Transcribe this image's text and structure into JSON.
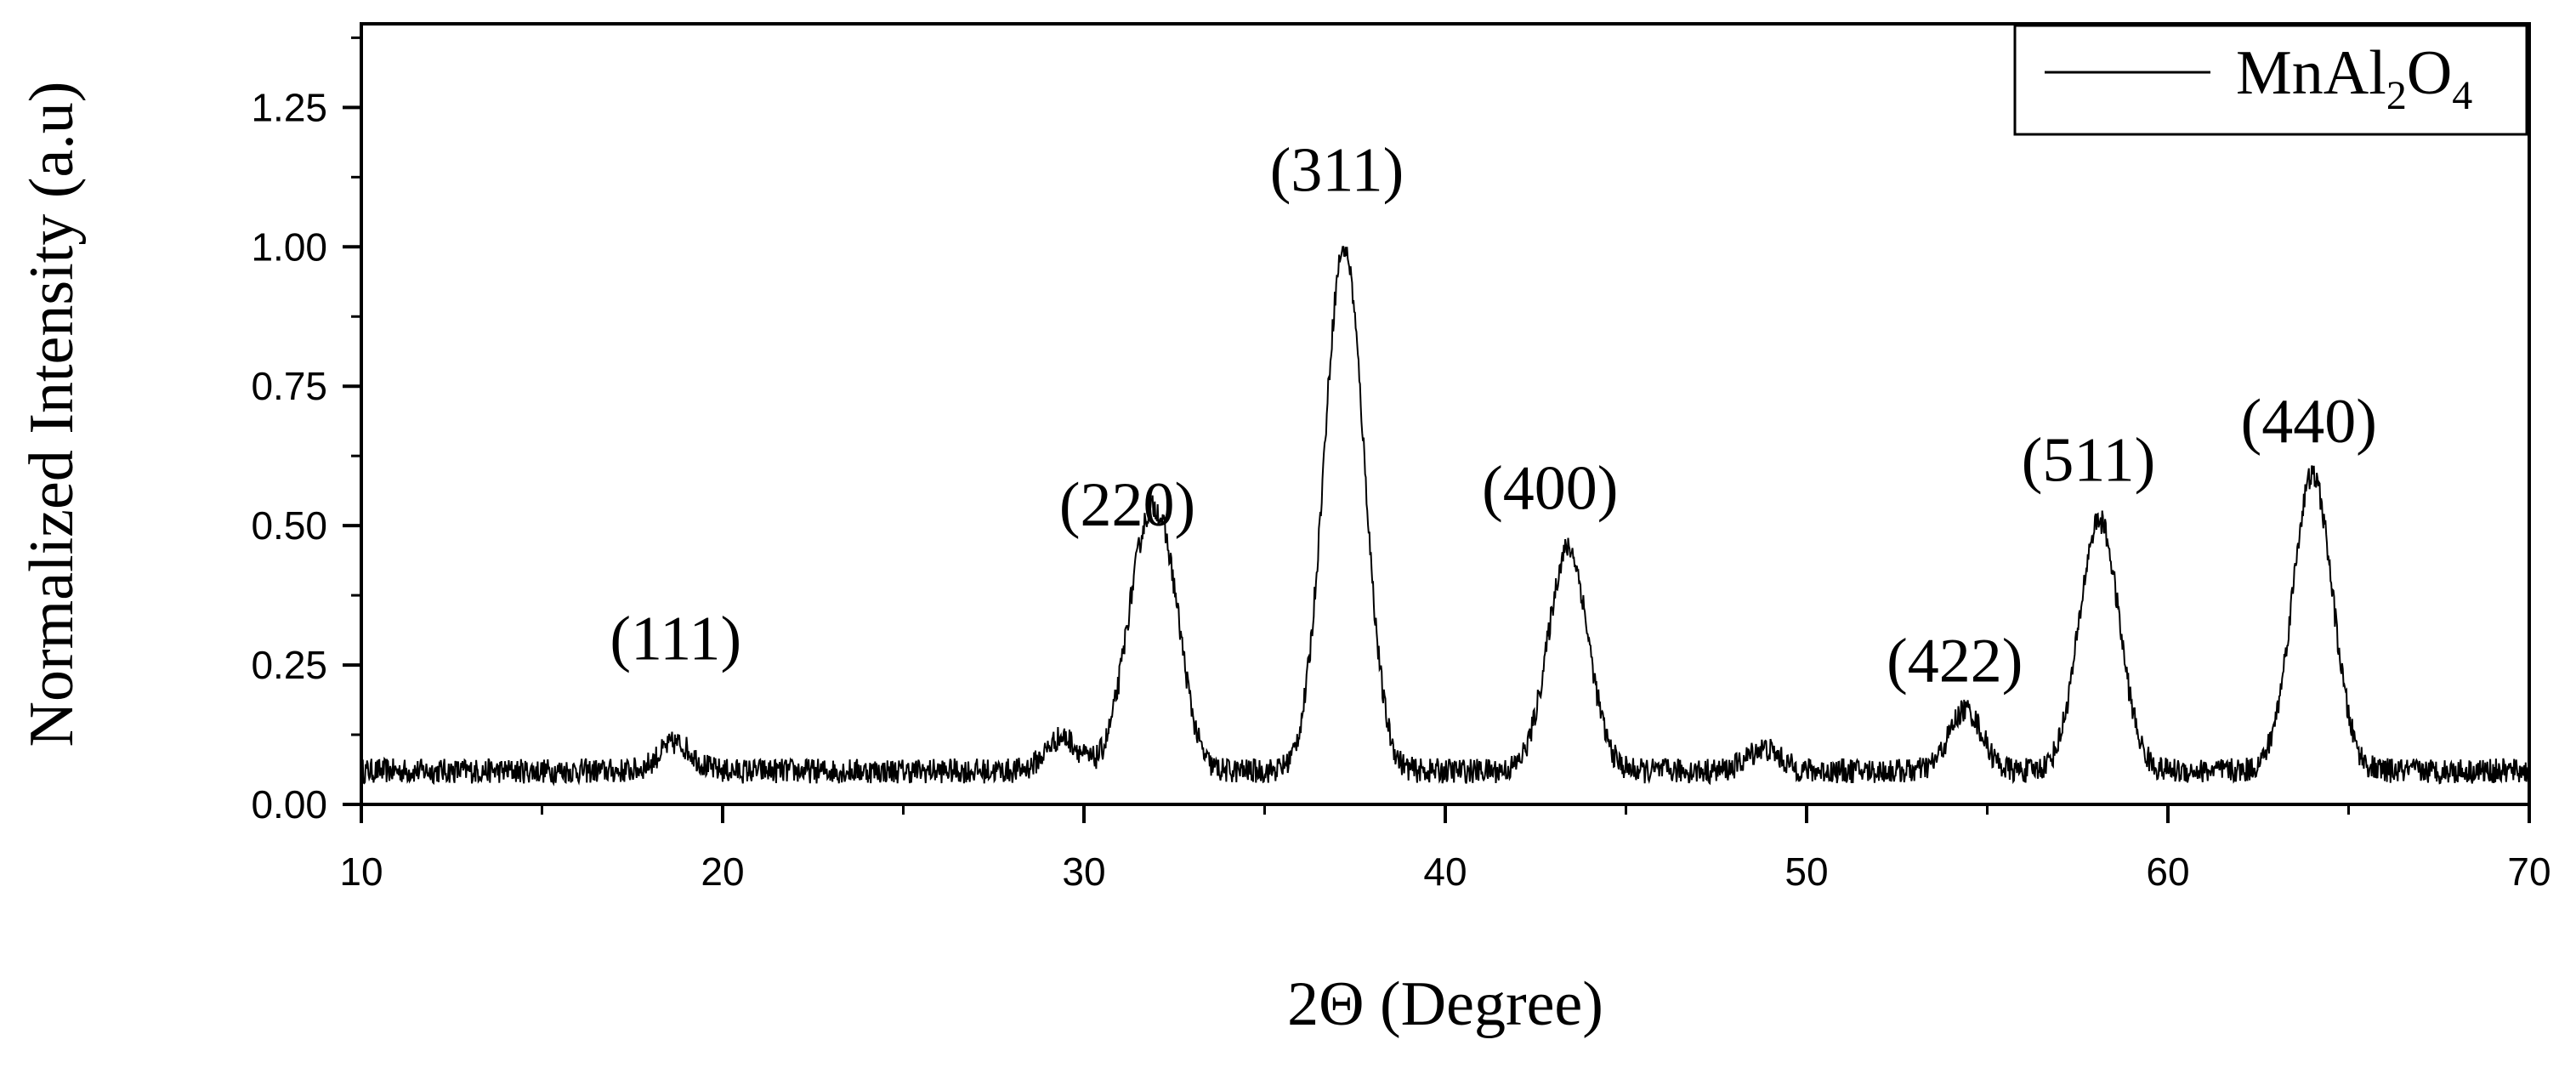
{
  "chart_data": {
    "type": "line",
    "title": "",
    "xlabel": "2Θ (Degree)",
    "ylabel": "Normalized Intensity (a.u)",
    "xlim": [
      10,
      70
    ],
    "ylim": [
      0,
      1.4
    ],
    "x_ticks": [
      10,
      20,
      30,
      40,
      50,
      60,
      70
    ],
    "x_tick_labels": [
      "10",
      "20",
      "30",
      "40",
      "50",
      "60",
      "70"
    ],
    "y_ticks": [
      0,
      0.25,
      0.5,
      0.75,
      1.0,
      1.25
    ],
    "y_tick_labels": [
      "0.00",
      "0.25",
      "0.50",
      "0.75",
      "1.00",
      "1.25"
    ],
    "grid": false,
    "legend": {
      "position": "top-right",
      "entries": [
        {
          "base": "MnAl",
          "sub1": "2",
          "mid": "O",
          "sub2": "4"
        }
      ]
    },
    "color": "#000000",
    "series": [
      {
        "name": "MnAl2O4",
        "baseline": 0.06,
        "peaks": [
          {
            "x": 18.7,
            "y": 0.11
          },
          {
            "x": 29.4,
            "y": 0.12
          },
          {
            "x": 31.7,
            "y": 0.45
          },
          {
            "x": 32.4,
            "y": 0.26
          },
          {
            "x": 37.2,
            "y": 1.0
          },
          {
            "x": 43.4,
            "y": 0.46
          },
          {
            "x": 48.8,
            "y": 0.1
          },
          {
            "x": 54.4,
            "y": 0.17
          },
          {
            "x": 58.1,
            "y": 0.51
          },
          {
            "x": 64.0,
            "y": 0.59
          }
        ]
      }
    ],
    "annotations": [
      {
        "text": "(111)",
        "x": 18.7,
        "y": 0.26
      },
      {
        "text": "(220)",
        "x": 31.2,
        "y": 0.5
      },
      {
        "text": "(311)",
        "x": 37.0,
        "y": 1.1
      },
      {
        "text": "(400)",
        "x": 42.9,
        "y": 0.53
      },
      {
        "text": "(422)",
        "x": 54.1,
        "y": 0.22
      },
      {
        "text": "(511)",
        "x": 57.8,
        "y": 0.58
      },
      {
        "text": "(440)",
        "x": 63.9,
        "y": 0.65
      }
    ]
  }
}
